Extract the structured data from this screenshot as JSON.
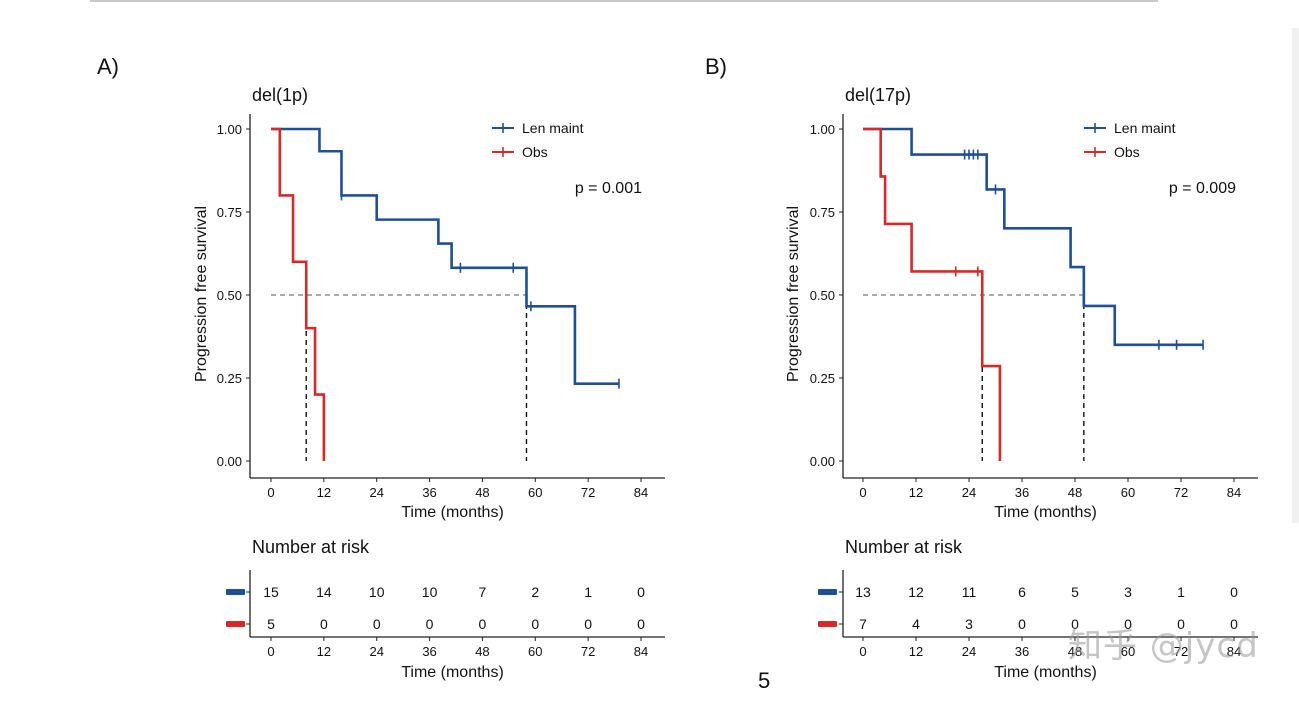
{
  "page": {
    "page_number": "5",
    "watermark": "知乎 @jycd"
  },
  "colors": {
    "len": "#1f4f96",
    "obs": "#d42a2a",
    "axis": "#222222",
    "text": "#111111",
    "guide": "#555555"
  },
  "chart_data": [
    {
      "panel_label": "A)",
      "title": "del(1p)",
      "type": "line",
      "xlabel": "Time (months)",
      "ylabel": "Progression free survival",
      "xlim": [
        0,
        84
      ],
      "ylim": [
        0,
        1
      ],
      "x_ticks": [
        "0",
        "12",
        "24",
        "36",
        "48",
        "60",
        "72",
        "84"
      ],
      "y_ticks": [
        "0.00",
        "0.25",
        "0.50",
        "0.75",
        "1.00"
      ],
      "p_value": "p = 0.001",
      "legend_placement": "top-right",
      "median_line": 0.5,
      "series": [
        {
          "name": "Len maint",
          "steps": [
            [
              0,
              1.0
            ],
            [
              11,
              0.933
            ],
            [
              16,
              0.8
            ],
            [
              24,
              0.727
            ],
            [
              38,
              0.655
            ],
            [
              41,
              0.582
            ],
            [
              58,
              0.466
            ],
            [
              69,
              0.233
            ],
            [
              79,
              0.233
            ]
          ],
          "censors": [
            [
              16,
              0.8
            ],
            [
              43,
              0.582
            ],
            [
              55,
              0.582
            ],
            [
              59,
              0.466
            ],
            [
              79,
              0.233
            ]
          ],
          "median": 58
        },
        {
          "name": "Obs",
          "steps": [
            [
              0,
              1.0
            ],
            [
              2,
              0.8
            ],
            [
              5,
              0.6
            ],
            [
              8,
              0.4
            ],
            [
              10,
              0.2
            ],
            [
              12,
              0.0
            ]
          ],
          "censors": [],
          "median": 8
        }
      ],
      "risk_table": {
        "title": "Number at risk",
        "xlabel": "Time (months)",
        "x_ticks": [
          "0",
          "12",
          "24",
          "36",
          "48",
          "60",
          "72",
          "84"
        ],
        "rows": [
          {
            "series": "Len maint",
            "values": [
              "15",
              "14",
              "10",
              "10",
              "7",
              "2",
              "1",
              "0"
            ]
          },
          {
            "series": "Obs",
            "values": [
              "5",
              "0",
              "0",
              "0",
              "0",
              "0",
              "0",
              "0"
            ]
          }
        ]
      }
    },
    {
      "panel_label": "B)",
      "title": "del(17p)",
      "type": "line",
      "xlabel": "Time (months)",
      "ylabel": "Progression free survival",
      "xlim": [
        0,
        84
      ],
      "ylim": [
        0,
        1
      ],
      "x_ticks": [
        "0",
        "12",
        "24",
        "36",
        "48",
        "60",
        "72",
        "84"
      ],
      "y_ticks": [
        "0.00",
        "0.25",
        "0.50",
        "0.75",
        "1.00"
      ],
      "p_value": "p = 0.009",
      "legend_placement": "top-right",
      "median_line": 0.5,
      "series": [
        {
          "name": "Len maint",
          "steps": [
            [
              0,
              1.0
            ],
            [
              11,
              0.923
            ],
            [
              28,
              0.818
            ],
            [
              32,
              0.701
            ],
            [
              47,
              0.584
            ],
            [
              50,
              0.467
            ],
            [
              57,
              0.35
            ],
            [
              77,
              0.35
            ]
          ],
          "censors": [
            [
              23,
              0.923
            ],
            [
              24,
              0.923
            ],
            [
              25,
              0.923
            ],
            [
              26,
              0.923
            ],
            [
              30,
              0.818
            ],
            [
              67,
              0.35
            ],
            [
              71,
              0.35
            ],
            [
              77,
              0.35
            ]
          ],
          "median": 50
        },
        {
          "name": "Obs",
          "steps": [
            [
              0,
              1.0
            ],
            [
              4,
              0.857
            ],
            [
              5,
              0.714
            ],
            [
              11,
              0.571
            ],
            [
              27,
              0.286
            ],
            [
              31,
              0.0
            ]
          ],
          "censors": [
            [
              21,
              0.571
            ],
            [
              26,
              0.571
            ]
          ],
          "median": 27
        }
      ],
      "risk_table": {
        "title": "Number at risk",
        "xlabel": "Time (months)",
        "x_ticks": [
          "0",
          "12",
          "24",
          "36",
          "48",
          "60",
          "72",
          "84"
        ],
        "rows": [
          {
            "series": "Len maint",
            "values": [
              "13",
              "12",
              "11",
              "6",
              "5",
              "3",
              "1",
              "0"
            ]
          },
          {
            "series": "Obs",
            "values": [
              "7",
              "4",
              "3",
              "0",
              "0",
              "0",
              "0",
              "0"
            ]
          }
        ]
      }
    }
  ]
}
